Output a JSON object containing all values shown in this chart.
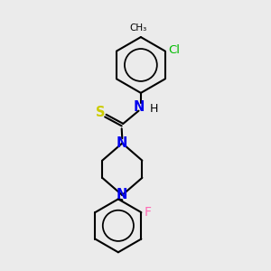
{
  "background_color": "#ebebeb",
  "bond_color": "#000000",
  "atom_colors": {
    "N": "#0000ee",
    "S": "#cccc00",
    "Cl": "#00bb00",
    "F": "#ff69b4",
    "C": "#000000",
    "H": "#000000"
  },
  "font_size": 9,
  "figsize": [
    3.0,
    3.0
  ],
  "dpi": 100,
  "xlim": [
    0,
    10
  ],
  "ylim": [
    0,
    10
  ]
}
